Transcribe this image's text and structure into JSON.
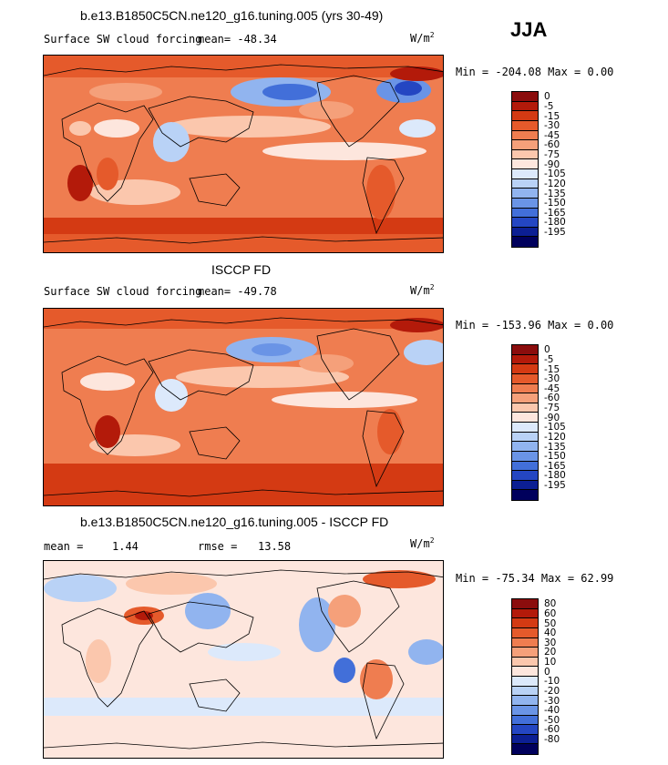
{
  "season": "JJA",
  "units_base": "W/m",
  "units_exp": "2",
  "chart_data": [
    {
      "type": "heatmap",
      "title": "b.e13.B1850C5CN.ne120_g16.tuning.005 (yrs 30-49)",
      "subtitle": "Surface SW cloud forcing",
      "mean_text": "mean= -48.34",
      "stats_text": "Min = -204.08 Max =   0.00",
      "min": -204.08,
      "max": 0.0,
      "levels": [
        "0",
        "-5",
        "-15",
        "-30",
        "-45",
        "-60",
        "-75",
        "-90",
        "-105",
        "-120",
        "-135",
        "-150",
        "-165",
        "-180",
        "-195"
      ],
      "colors": [
        "#8b0d0d",
        "#b31a0a",
        "#d43a13",
        "#e55a2b",
        "#ef7d50",
        "#f5a07a",
        "#fbc7ad",
        "#fde6dd",
        "#dce9fb",
        "#b9d2f6",
        "#91b4ef",
        "#6a94e6",
        "#426fd9",
        "#2446c2",
        "#0c1f93",
        "#00005c"
      ]
    },
    {
      "type": "heatmap",
      "title": "ISCCP FD",
      "subtitle": "Surface SW cloud forcing",
      "mean_text": "mean= -49.78",
      "stats_text": "Min = -153.96 Max =   0.00",
      "min": -153.96,
      "max": 0.0,
      "levels": [
        "0",
        "-5",
        "-15",
        "-30",
        "-45",
        "-60",
        "-75",
        "-90",
        "-105",
        "-120",
        "-135",
        "-150",
        "-165",
        "-180",
        "-195"
      ],
      "colors": [
        "#8b0d0d",
        "#b31a0a",
        "#d43a13",
        "#e55a2b",
        "#ef7d50",
        "#f5a07a",
        "#fbc7ad",
        "#fde6dd",
        "#dce9fb",
        "#b9d2f6",
        "#91b4ef",
        "#6a94e6",
        "#426fd9",
        "#2446c2",
        "#0c1f93",
        "#00005c"
      ]
    },
    {
      "type": "heatmap",
      "title": "b.e13.B1850C5CN.ne120_g16.tuning.005 - ISCCP FD",
      "mean_label": "mean =",
      "mean_value": "1.44",
      "rmse_label": "rmse =",
      "rmse_value": "13.58",
      "stats_text": "Min = -75.34 Max =  62.99",
      "min": -75.34,
      "max": 62.99,
      "levels": [
        "80",
        "60",
        "50",
        "40",
        "30",
        "20",
        "10",
        "0",
        "-10",
        "-20",
        "-30",
        "-40",
        "-50",
        "-60",
        "-80"
      ],
      "colors": [
        "#8b0d0d",
        "#b31a0a",
        "#d43a13",
        "#e55a2b",
        "#ef7d50",
        "#f5a07a",
        "#fbc7ad",
        "#fde6dd",
        "#dce9fb",
        "#b9d2f6",
        "#91b4ef",
        "#6a94e6",
        "#426fd9",
        "#2446c2",
        "#0c1f93",
        "#00005c"
      ]
    }
  ]
}
